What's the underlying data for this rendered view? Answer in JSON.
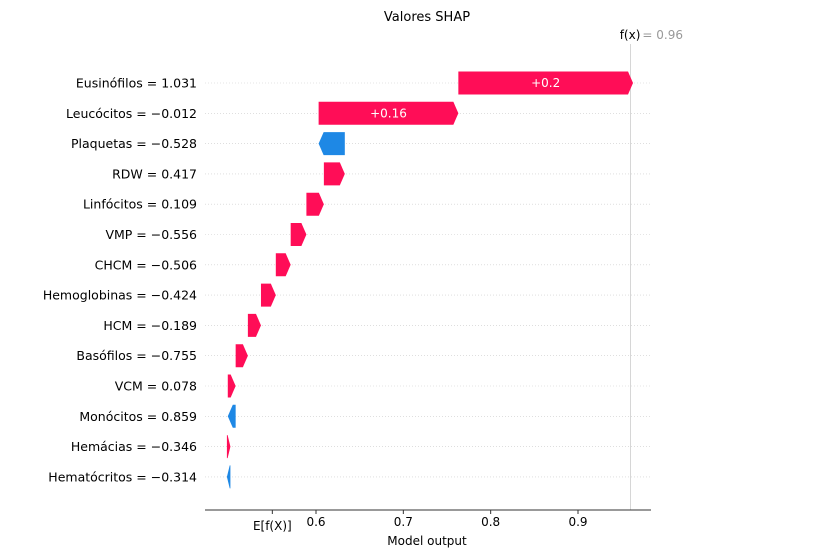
{
  "chart_data": {
    "type": "bar",
    "title": "Valores SHAP",
    "xlabel": "Model output",
    "base_value_label": "E[f(X)]",
    "output_label": "f(x)",
    "output_value_text": "= 0.96",
    "base_value": 0.55,
    "output_value": 0.96,
    "xlim": [
      0.535,
      0.99
    ],
    "xticks": [
      0.6,
      0.7,
      0.8,
      0.9
    ],
    "xtick_labels": [
      "0.6",
      "0.7",
      "0.8",
      "0.9"
    ],
    "colors": {
      "positive": "#ff0d57",
      "negative": "#1e88e5"
    },
    "features": [
      {
        "label": "Eusinófilos = 1.031",
        "start": 0.763,
        "end": 0.963,
        "value_label": "+0.2"
      },
      {
        "label": "Leucócitos = −0.012",
        "start": 0.603,
        "end": 0.763,
        "value_label": "+0.16"
      },
      {
        "label": "Plaquetas = −0.528",
        "start": 0.633,
        "end": 0.603,
        "value_label": ""
      },
      {
        "label": "RDW = 0.417",
        "start": 0.609,
        "end": 0.633,
        "value_label": ""
      },
      {
        "label": "Linfócitos = 0.109",
        "start": 0.589,
        "end": 0.609,
        "value_label": ""
      },
      {
        "label": "VMP = −0.556",
        "start": 0.571,
        "end": 0.589,
        "value_label": ""
      },
      {
        "label": "CHCM = −0.506",
        "start": 0.554,
        "end": 0.571,
        "value_label": ""
      },
      {
        "label": "Hemoglobinas = −0.424",
        "start": 0.537,
        "end": 0.554,
        "value_label": ""
      },
      {
        "label": "HCM = −0.189",
        "start": 0.522,
        "end": 0.537,
        "value_label": ""
      },
      {
        "label": "Basófilos = −0.755",
        "start": 0.508,
        "end": 0.522,
        "value_label": ""
      },
      {
        "label": "VCM = 0.078",
        "start": 0.499,
        "end": 0.508,
        "value_label": ""
      },
      {
        "label": "Monócitos = 0.859",
        "start": 0.508,
        "end": 0.499,
        "value_label": ""
      },
      {
        "label": "Hemácias = −0.346",
        "start": 0.498,
        "end": 0.502,
        "value_label": ""
      },
      {
        "label": "Hematócritos = −0.314",
        "start": 0.502,
        "end": 0.498,
        "value_label": ""
      }
    ],
    "grid": false
  }
}
